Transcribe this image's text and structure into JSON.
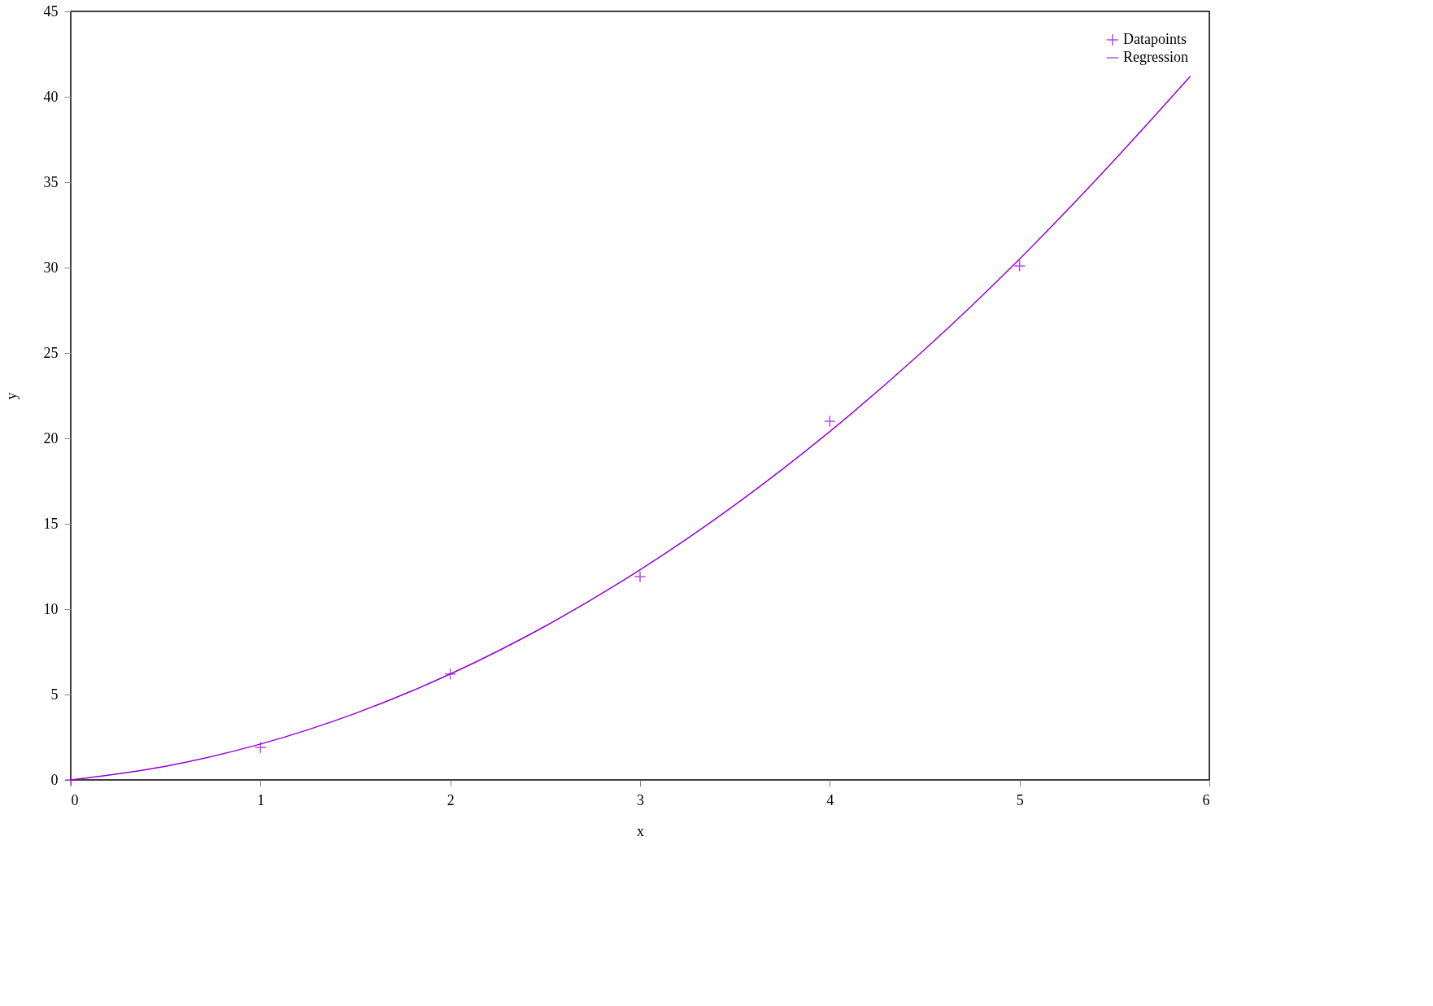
{
  "chart_data": {
    "type": "scatter",
    "xlabel": "x",
    "ylabel": "y",
    "xlim": [
      0,
      6
    ],
    "ylim": [
      0,
      45
    ],
    "xticks": [
      0,
      1,
      2,
      3,
      4,
      5,
      6
    ],
    "yticks": [
      0,
      5,
      10,
      15,
      20,
      25,
      30,
      35,
      40,
      45
    ],
    "grid": false,
    "legend": "top right",
    "series": [
      {
        "name": "Datapoints",
        "marker": "cross",
        "color": "#9400d3",
        "x": [
          0,
          1,
          2,
          3,
          4,
          5
        ],
        "values": [
          0,
          1.9,
          6.2,
          11.9,
          21,
          30.1
        ]
      },
      {
        "name": "Regression",
        "type": "line",
        "marker": "none",
        "line_style": "solid",
        "color": "#9400d3",
        "x": [
          0,
          0.5,
          1,
          1.5,
          2,
          2.5,
          3,
          3.5,
          4,
          4.5,
          5,
          5.5,
          5.9
        ],
        "values": [
          0,
          0.8,
          2.1,
          3.9,
          6.2,
          9,
          12.3,
          16.1,
          20.4,
          25.2,
          30.5,
          36.3,
          41.2
        ]
      }
    ]
  }
}
